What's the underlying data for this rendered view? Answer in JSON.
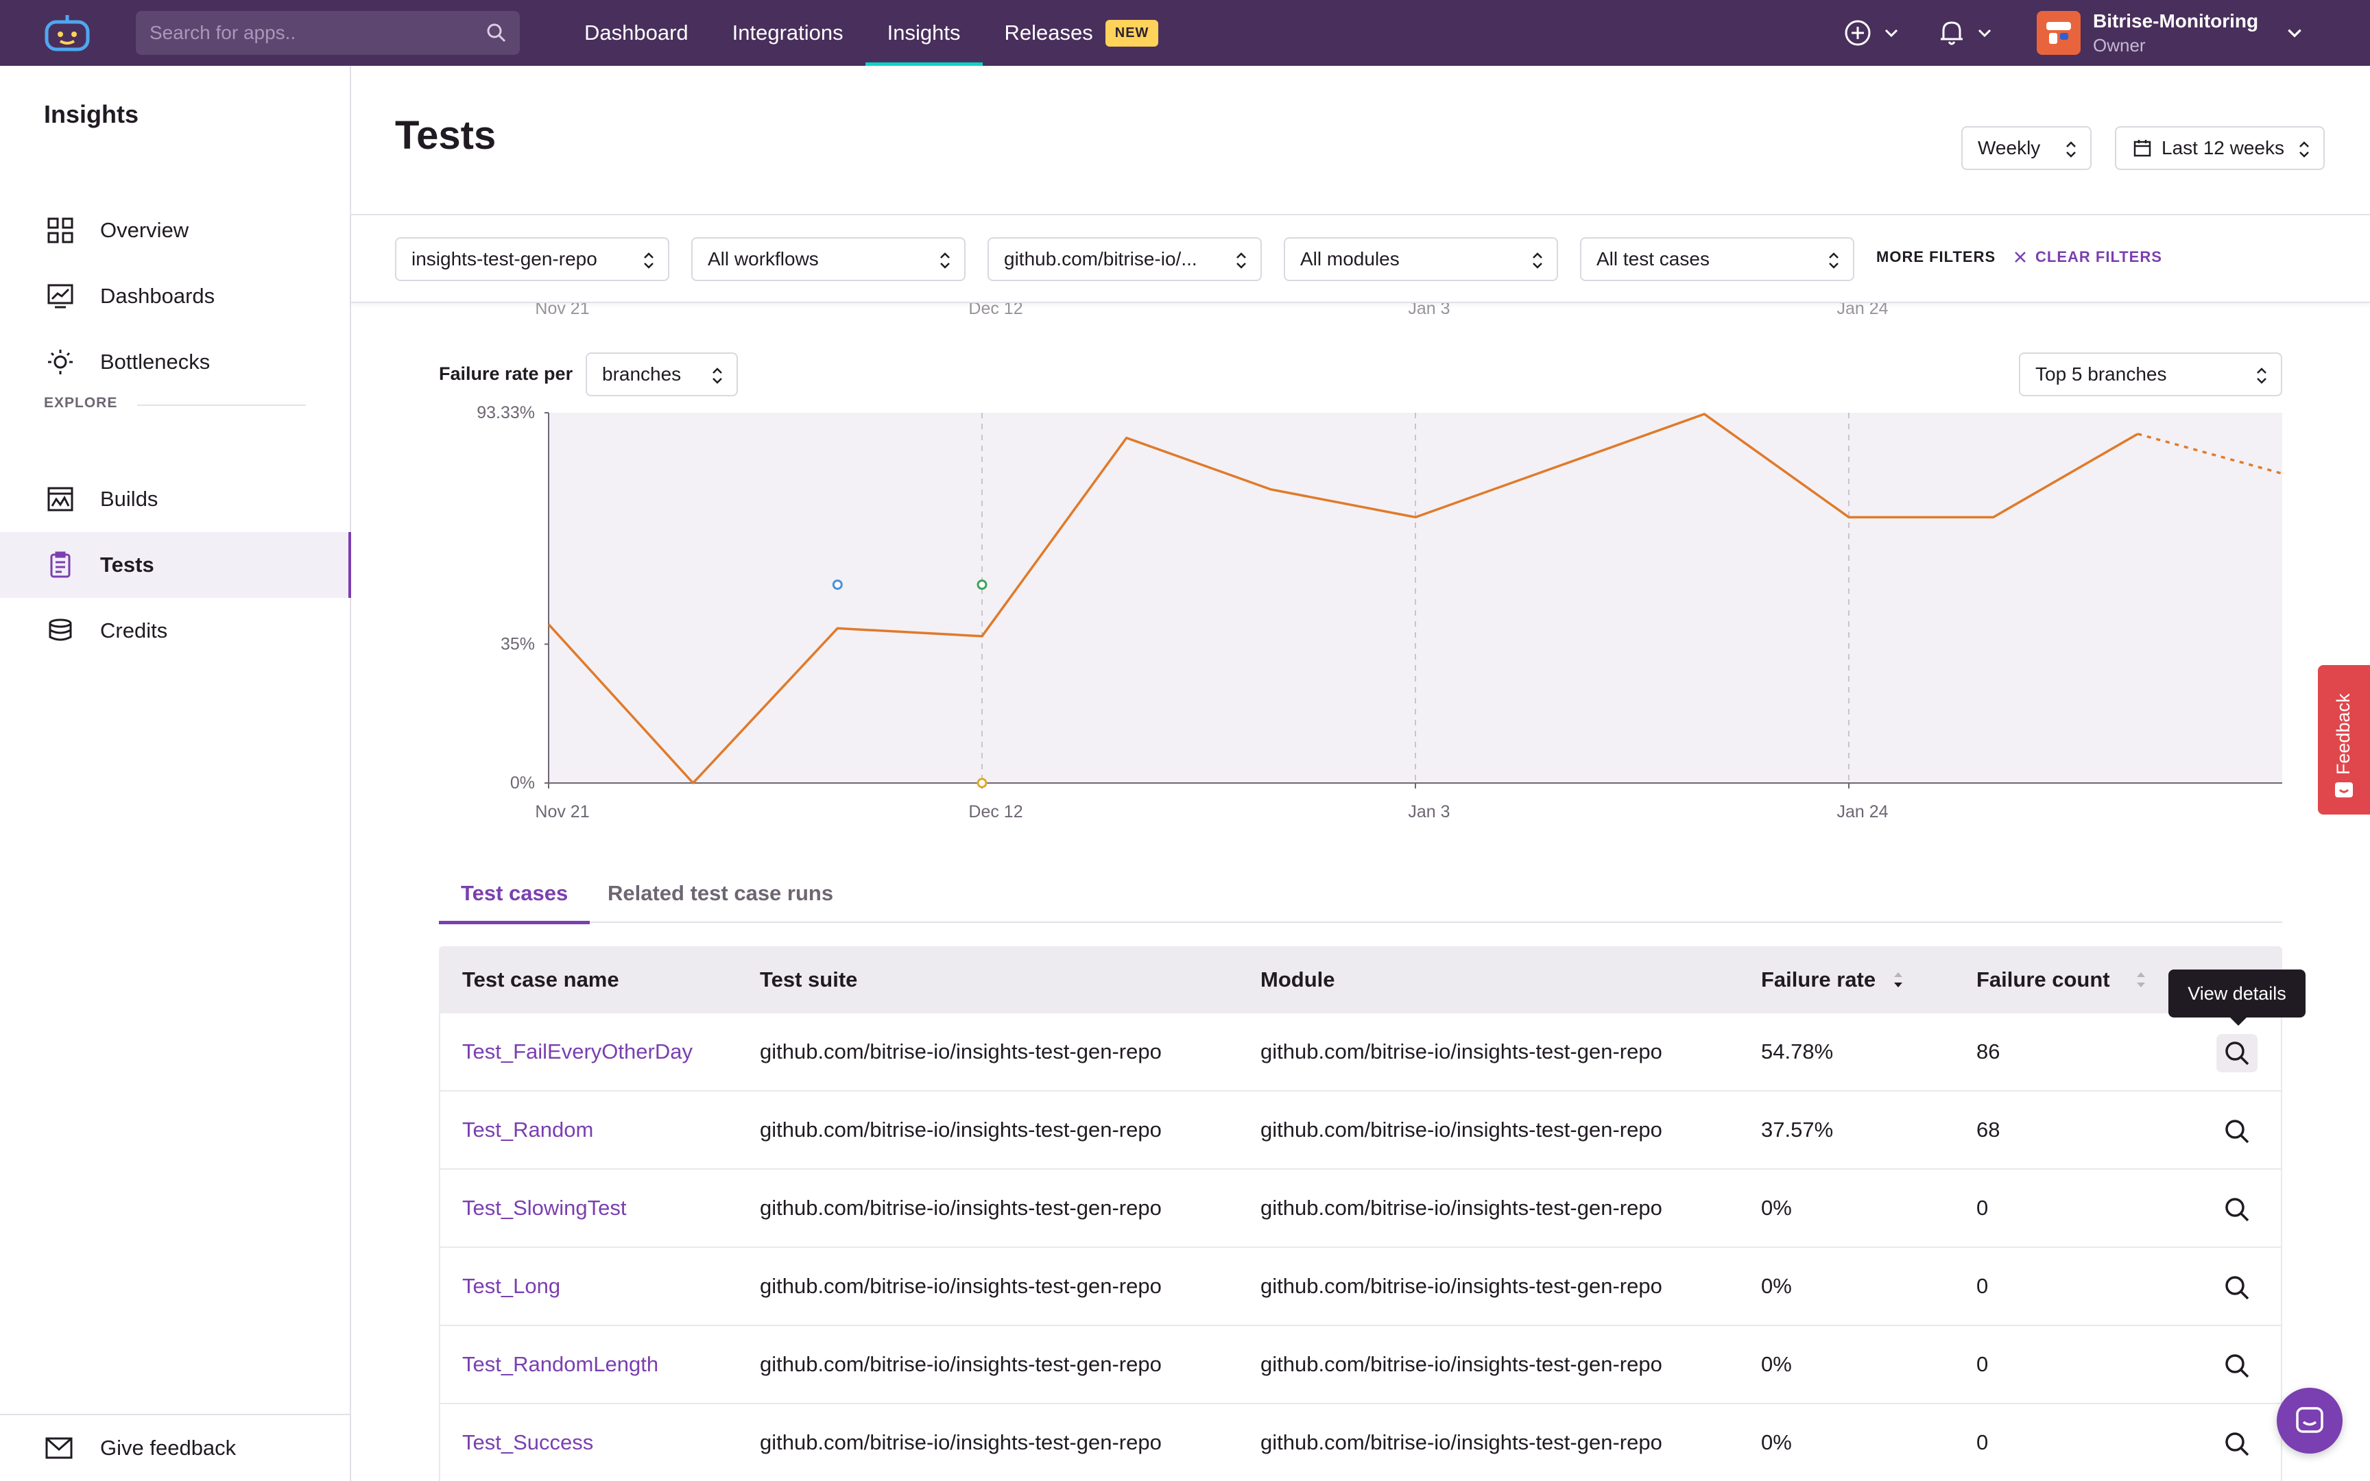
{
  "topbar": {
    "search_placeholder": "Search for apps..",
    "nav": [
      "Dashboard",
      "Integrations",
      "Insights",
      "Releases"
    ],
    "active_nav": "Insights",
    "new_badge": "NEW",
    "account": {
      "org": "Bitrise-Monitoring",
      "role": "Owner"
    }
  },
  "sidebar": {
    "title": "Insights",
    "items": [
      "Overview",
      "Dashboards",
      "Bottlenecks"
    ],
    "explore_label": "EXPLORE",
    "explore_items": [
      "Builds",
      "Tests",
      "Credits"
    ],
    "active_item": "Tests",
    "feedback": "Give feedback"
  },
  "header": {
    "title": "Tests",
    "interval": "Weekly",
    "range": "Last 12 weeks"
  },
  "filters": {
    "repo": "insights-test-gen-repo",
    "workflow": "All workflows",
    "suite": "github.com/bitrise-io/...",
    "module": "All modules",
    "test_case": "All test cases",
    "more": "MORE FILTERS",
    "clear": "CLEAR FILTERS"
  },
  "chart_controls": {
    "label": "Failure rate per",
    "group_by": "branches",
    "top": "Top 5 branches"
  },
  "chart_data": {
    "type": "line",
    "y_ticks": [
      "93.33%",
      "35%",
      "0%"
    ],
    "x_ticks": [
      "Nov 21",
      "Dec 12",
      "Jan 3",
      "Jan 24"
    ],
    "ylim": [
      0,
      93.33
    ],
    "series": [
      {
        "color": "#e07a2a",
        "values": [
          40,
          0,
          39,
          37,
          87,
          74,
          67,
          80,
          93,
          67,
          67,
          88,
          78
        ],
        "dashed_last_segment": true
      }
    ],
    "points": [
      {
        "index": 2,
        "value": 50,
        "color": "#4a90d9"
      },
      {
        "index": 3,
        "value": 50,
        "color": "#3aa55a"
      },
      {
        "index": 3,
        "value": 0,
        "color": "#e0a82a"
      }
    ]
  },
  "tabs": [
    "Test cases",
    "Related test case runs"
  ],
  "table": {
    "headers": [
      "Test case name",
      "Test suite",
      "Module",
      "Failure rate",
      "Failure count"
    ],
    "tooltip": "View details",
    "rows": [
      {
        "name": "Test_FailEveryOtherDay",
        "suite": "github.com/bitrise-io/insights-test-gen-repo",
        "module": "github.com/bitrise-io/insights-test-gen-repo",
        "rate": "54.78%",
        "count": "86"
      },
      {
        "name": "Test_Random",
        "suite": "github.com/bitrise-io/insights-test-gen-repo",
        "module": "github.com/bitrise-io/insights-test-gen-repo",
        "rate": "37.57%",
        "count": "68"
      },
      {
        "name": "Test_SlowingTest",
        "suite": "github.com/bitrise-io/insights-test-gen-repo",
        "module": "github.com/bitrise-io/insights-test-gen-repo",
        "rate": "0%",
        "count": "0"
      },
      {
        "name": "Test_Long",
        "suite": "github.com/bitrise-io/insights-test-gen-repo",
        "module": "github.com/bitrise-io/insights-test-gen-repo",
        "rate": "0%",
        "count": "0"
      },
      {
        "name": "Test_RandomLength",
        "suite": "github.com/bitrise-io/insights-test-gen-repo",
        "module": "github.com/bitrise-io/insights-test-gen-repo",
        "rate": "0%",
        "count": "0"
      },
      {
        "name": "Test_Success",
        "suite": "github.com/bitrise-io/insights-test-gen-repo",
        "module": "github.com/bitrise-io/insights-test-gen-repo",
        "rate": "0%",
        "count": "0"
      }
    ]
  },
  "floating": {
    "feedback_tab": "Feedback"
  }
}
